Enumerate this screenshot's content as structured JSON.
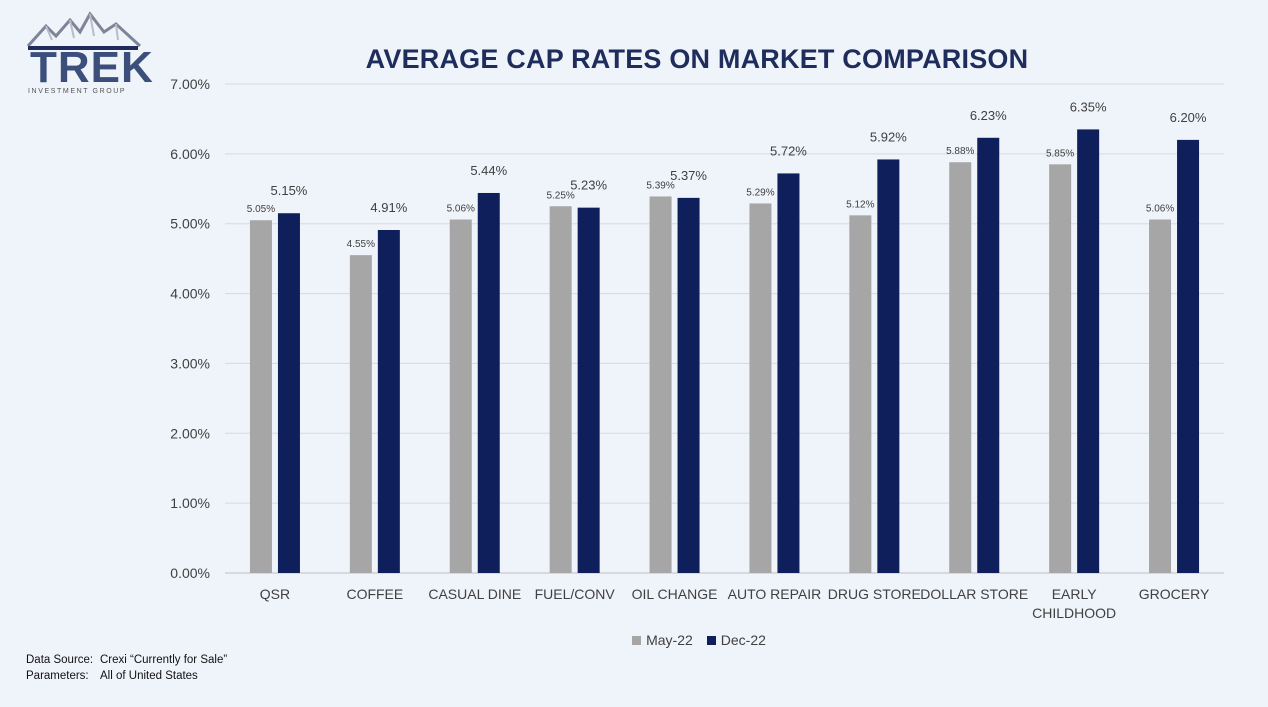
{
  "logo": {
    "wordmark": "TREK",
    "subtitle": "INVESTMENT GROUP"
  },
  "chart_data": {
    "type": "bar",
    "title": "AVERAGE CAP RATES ON MARKET COMPARISON",
    "categories": [
      "QSR",
      "COFFEE",
      "CASUAL DINE",
      "FUEL/CONV",
      "OIL CHANGE",
      "AUTO REPAIR",
      "DRUG STORE",
      "DOLLAR STORE",
      "EARLY CHILDHOOD",
      "GROCERY"
    ],
    "series": [
      {
        "name": "May-22",
        "color": "#a6a6a6",
        "values": [
          5.05,
          4.55,
          5.06,
          5.25,
          5.39,
          5.29,
          5.12,
          5.88,
          5.85,
          5.06
        ],
        "labels": [
          "5.05%",
          "4.55%",
          "5.06%",
          "5.25%",
          "5.39%",
          "5.29%",
          "5.12%",
          "5.88%",
          "5.85%",
          "5.06%"
        ]
      },
      {
        "name": "Dec-22",
        "color": "#0f1f5c",
        "values": [
          5.15,
          4.91,
          5.44,
          5.23,
          5.37,
          5.72,
          5.92,
          6.23,
          6.35,
          6.2
        ],
        "labels": [
          "5.15%",
          "4.91%",
          "5.44%",
          "5.23%",
          "5.37%",
          "5.72%",
          "5.92%",
          "6.23%",
          "6.35%",
          "6.20%"
        ]
      }
    ],
    "y_ticks": [
      "0.00%",
      "1.00%",
      "2.00%",
      "3.00%",
      "4.00%",
      "5.00%",
      "6.00%",
      "7.00%"
    ],
    "ylim": [
      0,
      7
    ],
    "grid": true,
    "legend_position": "bottom"
  },
  "footer": {
    "source_label": "Data Source:",
    "source_value": "Crexi “Currently for Sale”",
    "params_label": "Parameters:",
    "params_value": "All of United States"
  }
}
